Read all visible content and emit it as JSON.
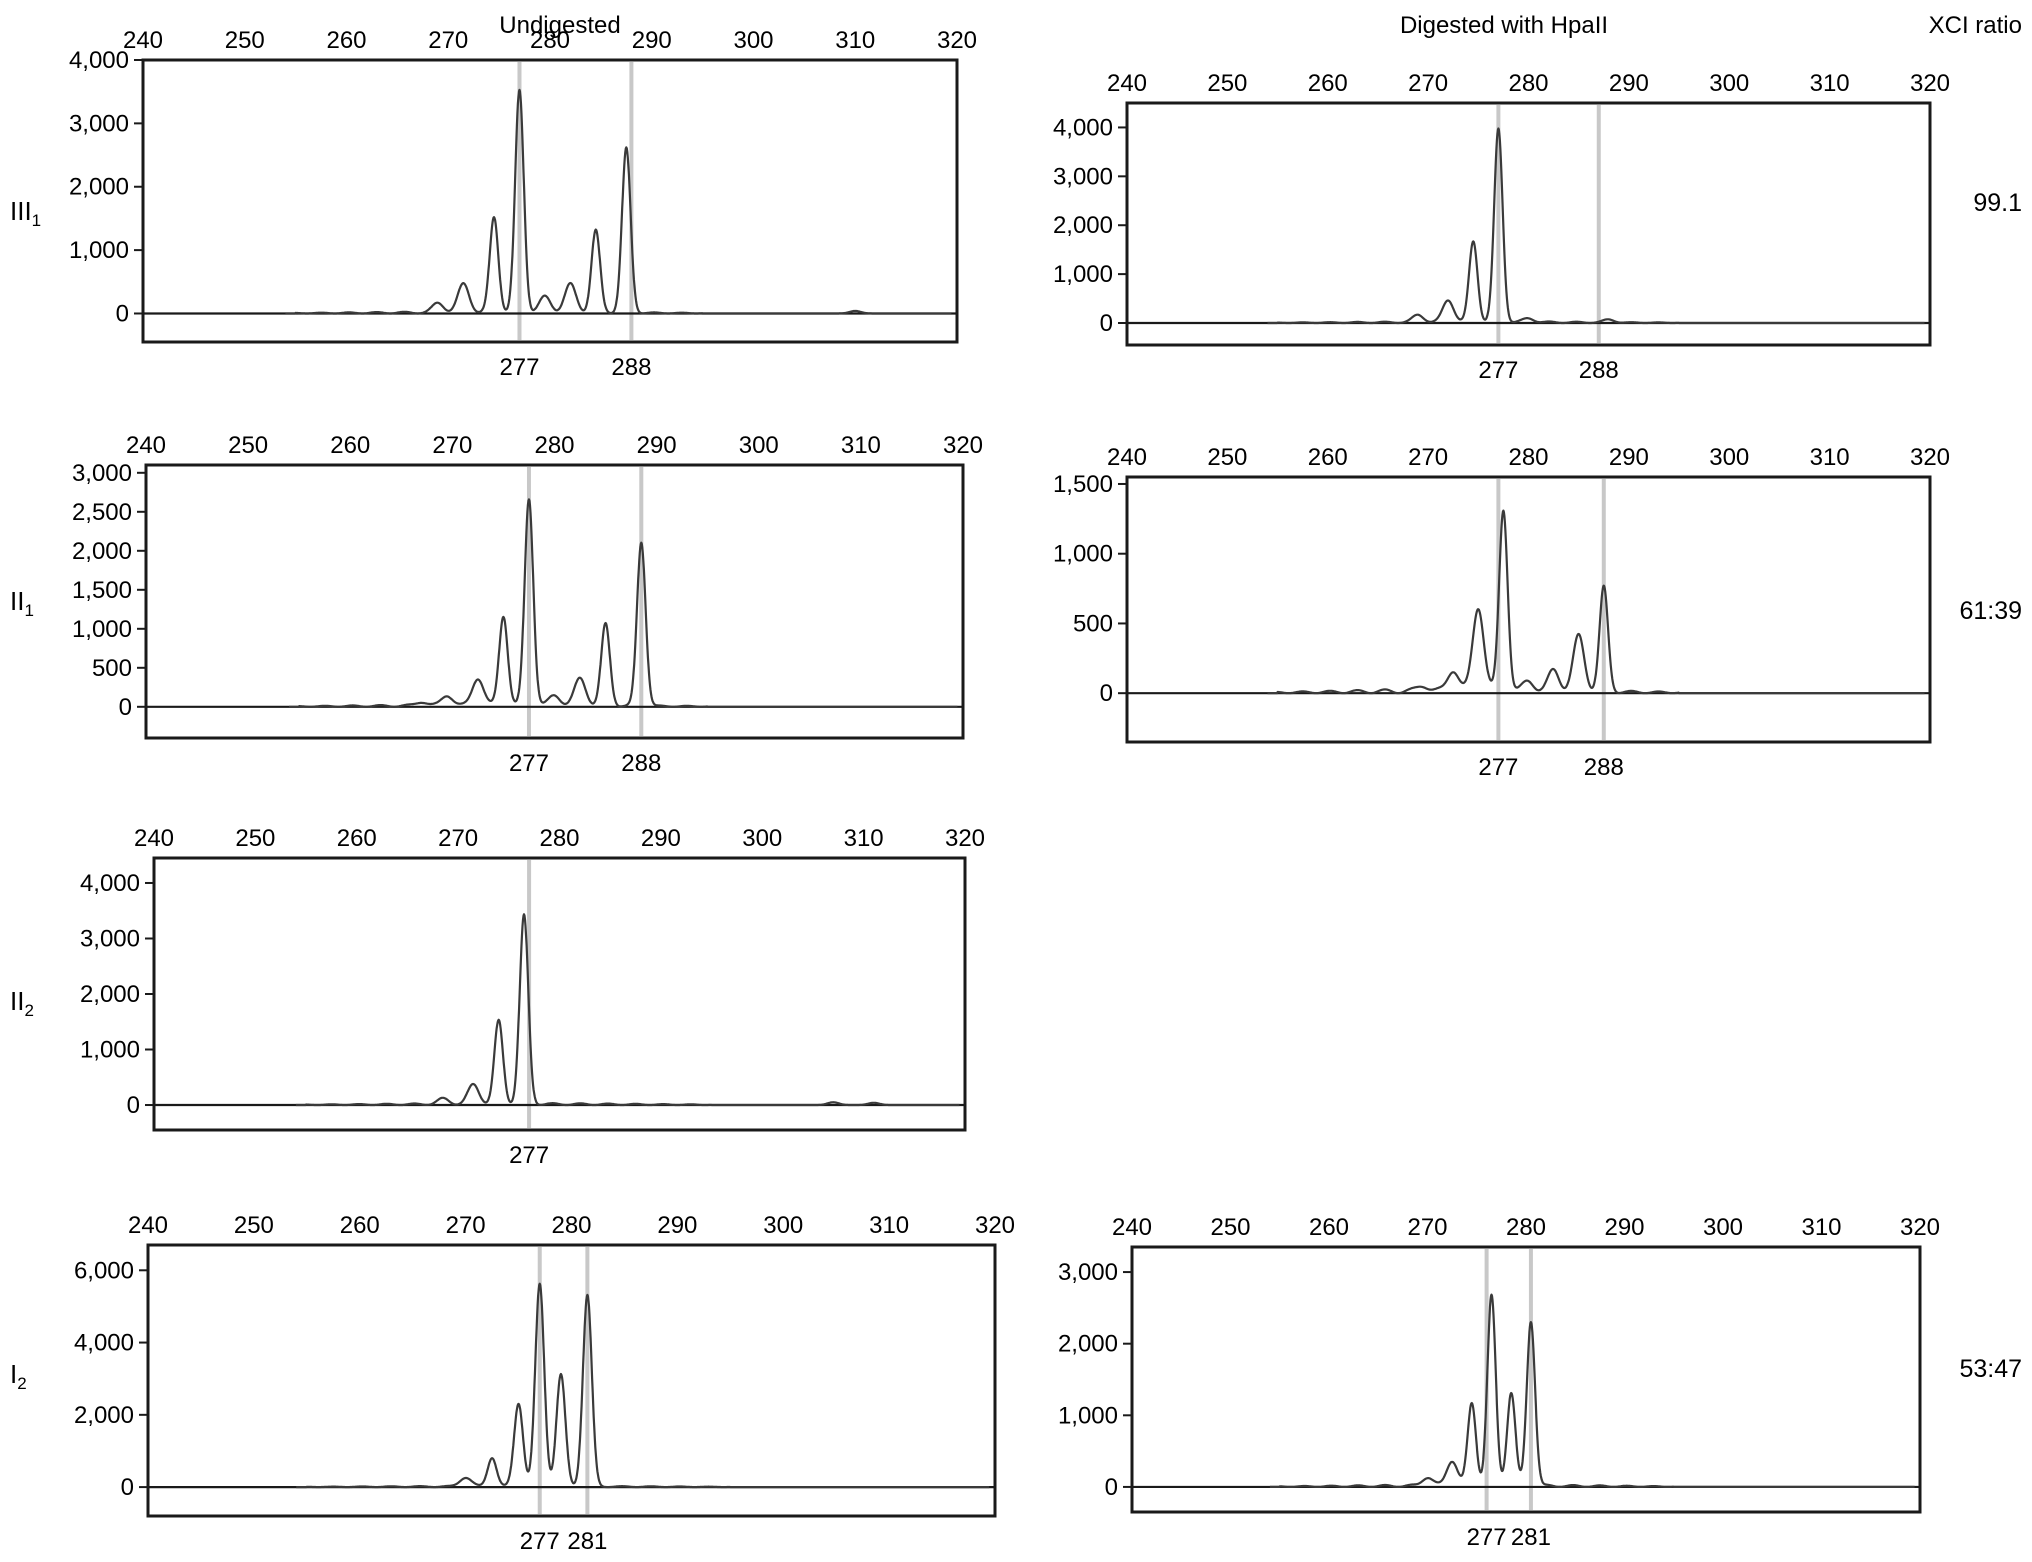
{
  "header": {
    "left": "Undigested",
    "right": "Digested with HpaII",
    "ratio": "XCI ratio"
  },
  "rows": [
    {
      "id": "III",
      "sub": "1",
      "ratio": "99.1"
    },
    {
      "id": "II",
      "sub": "1",
      "ratio": "61:39"
    },
    {
      "id": "II",
      "sub": "2",
      "ratio": ""
    },
    {
      "id": "I",
      "sub": "2",
      "ratio": "53:47"
    }
  ],
  "chart_data": [
    {
      "type": "line",
      "row": 0,
      "col": "undigested",
      "xlim": [
        240,
        320
      ],
      "xticks": [
        240,
        250,
        260,
        270,
        280,
        290,
        300,
        310,
        320
      ],
      "ylim": [
        -450,
        4000
      ],
      "yticks": [
        0,
        1000,
        2000,
        3000,
        4000
      ],
      "ytick_labels": [
        "0",
        "1,000",
        "2,000",
        "3,000",
        "4,000"
      ],
      "markers": [
        277,
        288
      ],
      "marker_labels": [
        "277",
        "288"
      ],
      "peaks": [
        [
          269,
          150
        ],
        [
          271.5,
          450
        ],
        [
          274.5,
          1500
        ],
        [
          277,
          3500
        ],
        [
          279.5,
          250
        ],
        [
          282,
          450
        ],
        [
          284.5,
          1300
        ],
        [
          287.5,
          2600
        ],
        [
          310,
          40
        ]
      ]
    },
    {
      "type": "line",
      "row": 0,
      "col": "digested",
      "xlim": [
        240,
        320
      ],
      "xticks": [
        240,
        250,
        260,
        270,
        280,
        290,
        300,
        310,
        320
      ],
      "ylim": [
        -450,
        4500
      ],
      "yticks": [
        0,
        1000,
        2000,
        3000,
        4000
      ],
      "ytick_labels": [
        "0",
        "1,000",
        "2,000",
        "3,000",
        "4,000"
      ],
      "markers": [
        277,
        287
      ],
      "marker_labels": [
        "277",
        "288"
      ],
      "peaks": [
        [
          269,
          150
        ],
        [
          272,
          450
        ],
        [
          274.5,
          1650
        ],
        [
          277,
          3950
        ],
        [
          280,
          80
        ],
        [
          288,
          60
        ]
      ]
    },
    {
      "type": "line",
      "row": 1,
      "col": "undigested",
      "xlim": [
        240,
        320
      ],
      "xticks": [
        240,
        250,
        260,
        270,
        280,
        290,
        300,
        310,
        320
      ],
      "ylim": [
        -400,
        3100
      ],
      "yticks": [
        0,
        500,
        1000,
        1500,
        2000,
        2500,
        3000
      ],
      "ytick_labels": [
        "0",
        "500",
        "1,000",
        "1,500",
        "2,000",
        "2,500",
        "3,000"
      ],
      "markers": [
        277.5,
        288.5
      ],
      "marker_labels": [
        "277",
        "288"
      ],
      "peaks": [
        [
          267,
          50
        ],
        [
          269.5,
          130
        ],
        [
          272.5,
          350
        ],
        [
          275,
          1150
        ],
        [
          277.5,
          2650
        ],
        [
          280,
          130
        ],
        [
          282.5,
          350
        ],
        [
          285,
          1050
        ],
        [
          288.5,
          2100
        ]
      ]
    },
    {
      "type": "line",
      "row": 1,
      "col": "digested",
      "xlim": [
        240,
        320
      ],
      "xticks": [
        240,
        250,
        260,
        270,
        280,
        290,
        300,
        310,
        320
      ],
      "ylim": [
        -350,
        1550
      ],
      "yticks": [
        0,
        500,
        1000,
        1500
      ],
      "ytick_labels": [
        "0",
        "500",
        "1,000",
        "1,500"
      ],
      "markers": [
        277,
        287.5
      ],
      "marker_labels": [
        "277",
        "288"
      ],
      "peaks": [
        [
          269.5,
          40
        ],
        [
          272.5,
          150
        ],
        [
          275,
          600
        ],
        [
          277.5,
          1300
        ],
        [
          280,
          70
        ],
        [
          282.5,
          150
        ],
        [
          285,
          400
        ],
        [
          287.5,
          750
        ]
      ]
    },
    {
      "type": "line",
      "row": 2,
      "col": "undigested",
      "xlim": [
        240,
        320
      ],
      "xticks": [
        240,
        250,
        260,
        270,
        280,
        290,
        300,
        310,
        320
      ],
      "ylim": [
        -450,
        4450
      ],
      "yticks": [
        0,
        1000,
        2000,
        3000,
        4000
      ],
      "ytick_labels": [
        "0",
        "1,000",
        "2,000",
        "3,000",
        "4,000"
      ],
      "markers": [
        277
      ],
      "marker_labels": [
        "277"
      ],
      "peaks": [
        [
          268.5,
          100
        ],
        [
          271.5,
          350
        ],
        [
          274,
          1500
        ],
        [
          276.5,
          3400
        ],
        [
          307,
          50
        ],
        [
          311,
          40
        ]
      ]
    },
    {
      "type": "line",
      "row": 3,
      "col": "undigested",
      "xlim": [
        240,
        320
      ],
      "xticks": [
        240,
        250,
        260,
        270,
        280,
        290,
        300,
        310,
        320
      ],
      "ylim": [
        -800,
        6700
      ],
      "yticks": [
        0,
        2000,
        4000,
        6000
      ],
      "ytick_labels": [
        "0",
        "2,000",
        "4,000",
        "6,000"
      ],
      "markers": [
        277,
        281.5
      ],
      "marker_labels": [
        "277",
        "281"
      ],
      "peaks": [
        [
          270,
          250
        ],
        [
          272.5,
          800
        ],
        [
          275,
          2300
        ],
        [
          277,
          5600
        ],
        [
          279,
          3100
        ],
        [
          281.5,
          5300
        ]
      ]
    },
    {
      "type": "line",
      "row": 3,
      "col": "digested",
      "xlim": [
        240,
        320
      ],
      "xticks": [
        240,
        250,
        260,
        270,
        280,
        290,
        300,
        310,
        320
      ],
      "ylim": [
        -350,
        3350
      ],
      "yticks": [
        0,
        1000,
        2000,
        3000
      ],
      "ytick_labels": [
        "0",
        "1,000",
        "2,000",
        "3,000"
      ],
      "markers": [
        276,
        280.5
      ],
      "marker_labels": [
        "277",
        "281"
      ],
      "peaks": [
        [
          270,
          120
        ],
        [
          272.5,
          350
        ],
        [
          274.5,
          1150
        ],
        [
          276.5,
          2650
        ],
        [
          278.5,
          1300
        ],
        [
          280.5,
          2300
        ]
      ]
    }
  ]
}
